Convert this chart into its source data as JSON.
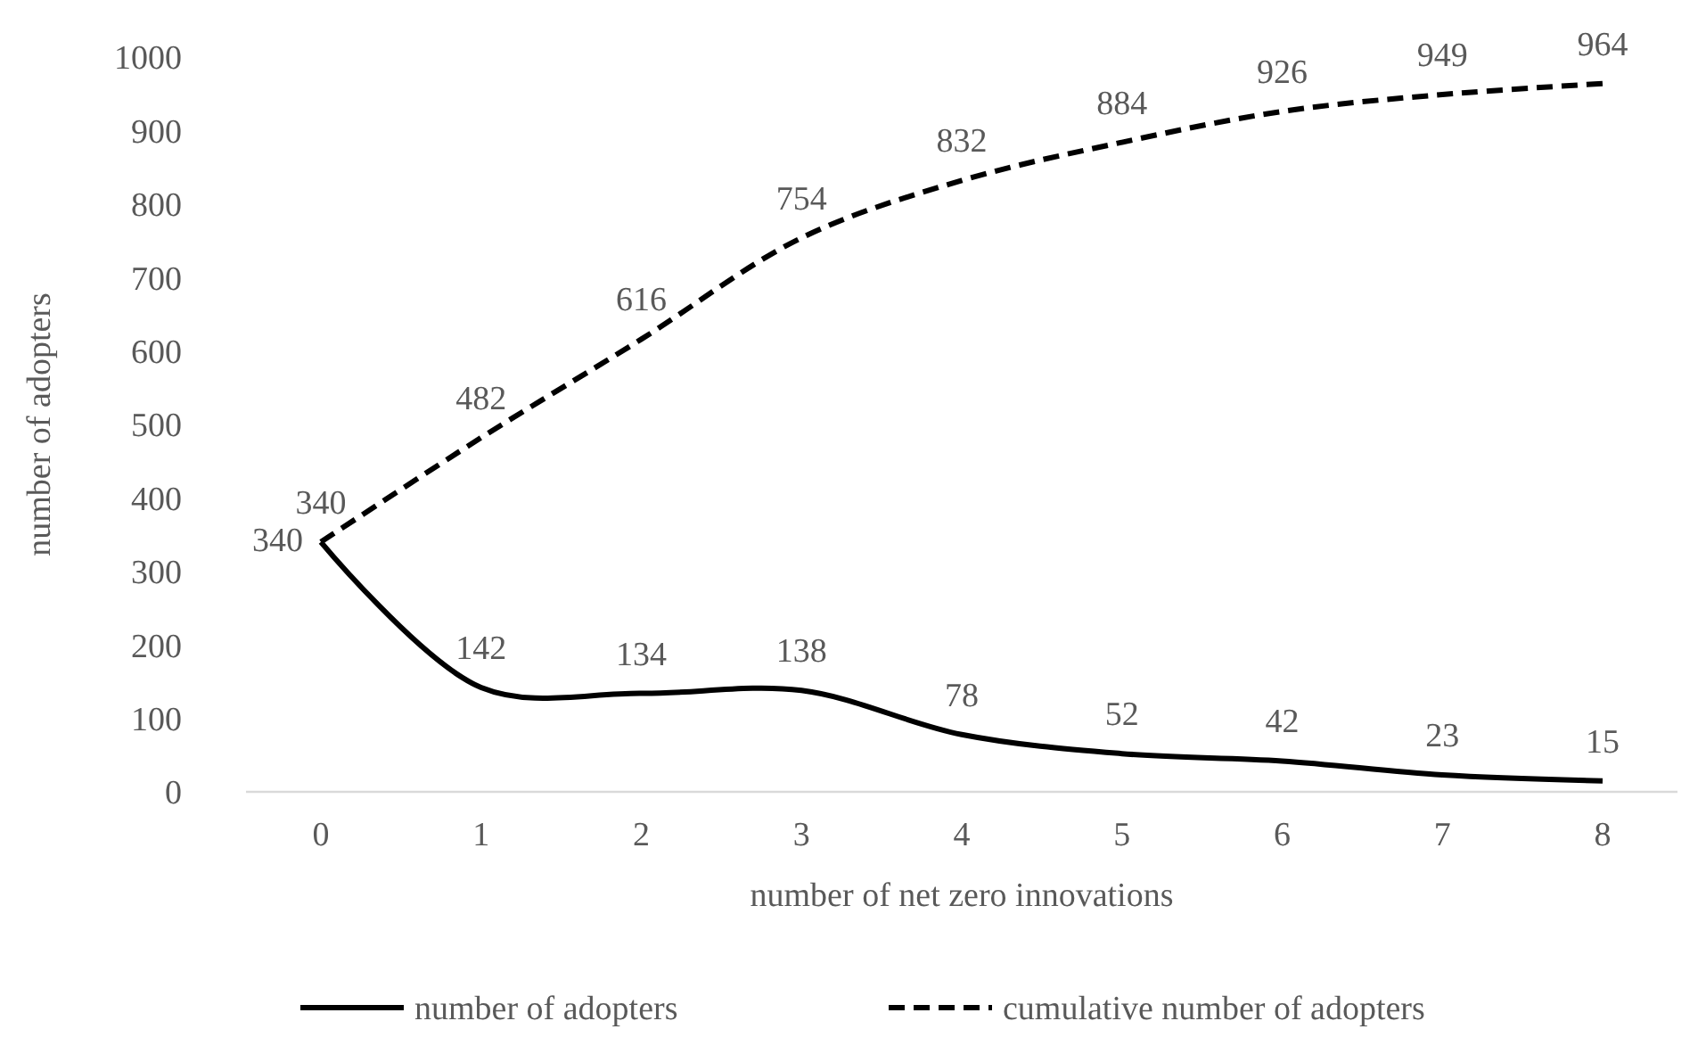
{
  "chart_data": {
    "type": "line",
    "xlabel": "number of net zero innovations",
    "ylabel": "number of adopters",
    "categories": [
      "0",
      "1",
      "2",
      "3",
      "4",
      "5",
      "6",
      "7",
      "8"
    ],
    "series": [
      {
        "name": "number of adopters",
        "color": "#000000",
        "line_style": "solid",
        "values": [
          340,
          142,
          134,
          138,
          78,
          52,
          42,
          23,
          15
        ]
      },
      {
        "name": "cumulative number of adopters",
        "color": "#000000",
        "line_style": "dashed",
        "values": [
          340,
          482,
          616,
          754,
          832,
          884,
          926,
          949,
          964
        ]
      }
    ],
    "ylim": [
      0,
      1000
    ],
    "yticks": [
      0,
      100,
      200,
      300,
      400,
      500,
      600,
      700,
      800,
      900,
      1000
    ],
    "grid": false,
    "data_labels": true,
    "legend": "bottom",
    "marker": "none"
  }
}
